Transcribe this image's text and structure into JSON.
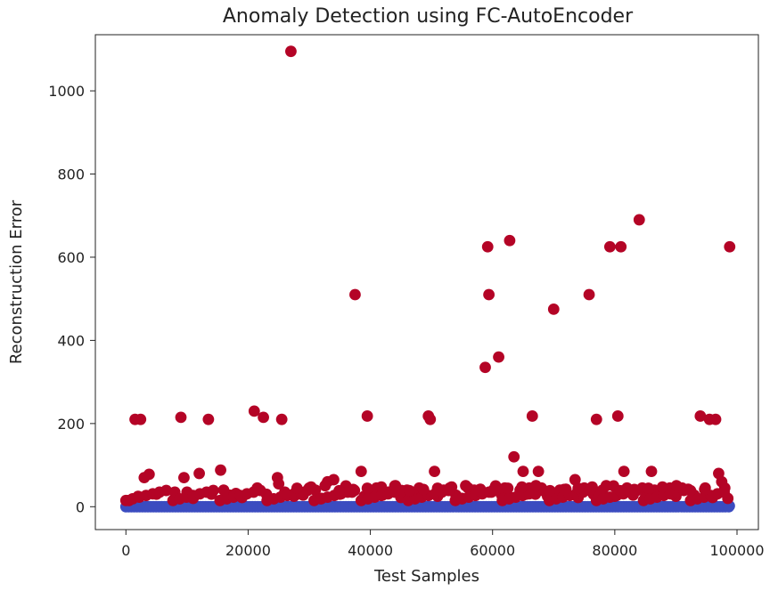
{
  "chart_data": {
    "type": "scatter",
    "title": "Anomaly Detection using FC-AutoEncoder",
    "xlabel": "Test Samples",
    "ylabel": "Reconstruction Error",
    "xlim": [
      -5000,
      103500
    ],
    "ylim": [
      -55,
      1135
    ],
    "xticks": [
      0,
      20000,
      40000,
      60000,
      80000,
      100000
    ],
    "xtick_labels": [
      "0",
      "20000",
      "40000",
      "60000",
      "80000",
      "100000"
    ],
    "yticks": [
      0,
      200,
      400,
      600,
      800,
      1000
    ],
    "ytick_labels": [
      "0",
      "200",
      "400",
      "600",
      "800",
      "1000"
    ],
    "grid": false,
    "legend": false,
    "colors": {
      "anomaly": "#b40426",
      "normal": "#3b4cc0",
      "axis": "#222222"
    },
    "series": [
      {
        "key": "anomaly",
        "color": "#b40426",
        "points": [
          [
            1500,
            210
          ],
          [
            2400,
            210
          ],
          [
            9000,
            215
          ],
          [
            13500,
            210
          ],
          [
            21000,
            230
          ],
          [
            22500,
            215
          ],
          [
            25500,
            210
          ],
          [
            27000,
            1095
          ],
          [
            37500,
            510
          ],
          [
            38500,
            85
          ],
          [
            39500,
            218
          ],
          [
            49500,
            218
          ],
          [
            49800,
            210
          ],
          [
            50500,
            85
          ],
          [
            58800,
            335
          ],
          [
            59200,
            625
          ],
          [
            59400,
            510
          ],
          [
            61000,
            360
          ],
          [
            62800,
            640
          ],
          [
            63500,
            120
          ],
          [
            65000,
            85
          ],
          [
            66500,
            218
          ],
          [
            67500,
            85
          ],
          [
            70000,
            475
          ],
          [
            75800,
            510
          ],
          [
            77000,
            210
          ],
          [
            79200,
            625
          ],
          [
            80500,
            218
          ],
          [
            81000,
            625
          ],
          [
            81500,
            85
          ],
          [
            84000,
            690
          ],
          [
            86000,
            85
          ],
          [
            94000,
            218
          ],
          [
            95500,
            210
          ],
          [
            96500,
            210
          ],
          [
            97000,
            80
          ],
          [
            97500,
            60
          ],
          [
            98000,
            45
          ],
          [
            98800,
            625
          ],
          [
            15500,
            88
          ],
          [
            12000,
            80
          ],
          [
            3000,
            70
          ],
          [
            3800,
            78
          ],
          [
            9500,
            70
          ],
          [
            21500,
            45
          ],
          [
            24800,
            70
          ],
          [
            25000,
            55
          ],
          [
            33000,
            60
          ],
          [
            34000,
            65
          ],
          [
            36000,
            50
          ],
          [
            44000,
            50
          ],
          [
            52000,
            40
          ],
          [
            56000,
            45
          ],
          [
            58000,
            42
          ],
          [
            60500,
            50
          ],
          [
            62000,
            45
          ],
          [
            64500,
            40
          ],
          [
            68000,
            45
          ],
          [
            71000,
            40
          ],
          [
            73500,
            65
          ],
          [
            75000,
            45
          ],
          [
            78000,
            40
          ],
          [
            79800,
            50
          ],
          [
            84500,
            45
          ],
          [
            86500,
            40
          ],
          [
            89000,
            45
          ],
          [
            92000,
            42
          ],
          [
            94800,
            45
          ],
          [
            30000,
            45
          ],
          [
            31000,
            40
          ],
          [
            41000,
            45
          ],
          [
            46000,
            40
          ],
          [
            48000,
            45
          ],
          [
            53000,
            45
          ],
          [
            57000,
            40
          ],
          [
            66000,
            45
          ],
          [
            72000,
            42
          ],
          [
            82000,
            45
          ],
          [
            88000,
            40
          ],
          [
            91000,
            45
          ],
          [
            500,
            15
          ],
          [
            2000,
            25
          ],
          [
            5000,
            30
          ],
          [
            8000,
            35
          ],
          [
            11000,
            20
          ],
          [
            14000,
            30
          ],
          [
            17000,
            28
          ],
          [
            19000,
            22
          ],
          [
            23000,
            30
          ],
          [
            27500,
            25
          ],
          [
            29000,
            28
          ],
          [
            32000,
            20
          ],
          [
            35000,
            30
          ],
          [
            39000,
            25
          ],
          [
            42000,
            28
          ],
          [
            45000,
            22
          ],
          [
            47000,
            30
          ],
          [
            51000,
            25
          ],
          [
            54000,
            28
          ],
          [
            55000,
            20
          ],
          [
            61500,
            28
          ],
          [
            63000,
            22
          ],
          [
            67000,
            30
          ],
          [
            69000,
            25
          ],
          [
            70500,
            28
          ],
          [
            74000,
            22
          ],
          [
            76500,
            30
          ],
          [
            80000,
            25
          ],
          [
            83000,
            28
          ],
          [
            85000,
            22
          ],
          [
            87000,
            30
          ],
          [
            90000,
            25
          ],
          [
            93000,
            28
          ],
          [
            96000,
            22
          ],
          [
            98500,
            20
          ],
          [
            10000,
            35
          ],
          [
            16000,
            40
          ],
          [
            18000,
            32
          ],
          [
            26000,
            35
          ],
          [
            28000,
            30
          ],
          [
            37000,
            35
          ],
          [
            40500,
            30
          ],
          [
            43000,
            35
          ],
          [
            56500,
            30
          ],
          [
            59800,
            35
          ],
          [
            65500,
            30
          ],
          [
            77500,
            35
          ],
          [
            89500,
            30
          ]
        ]
      },
      {
        "key": "normal",
        "color": "#3b4cc0",
        "points": []
      }
    ]
  }
}
